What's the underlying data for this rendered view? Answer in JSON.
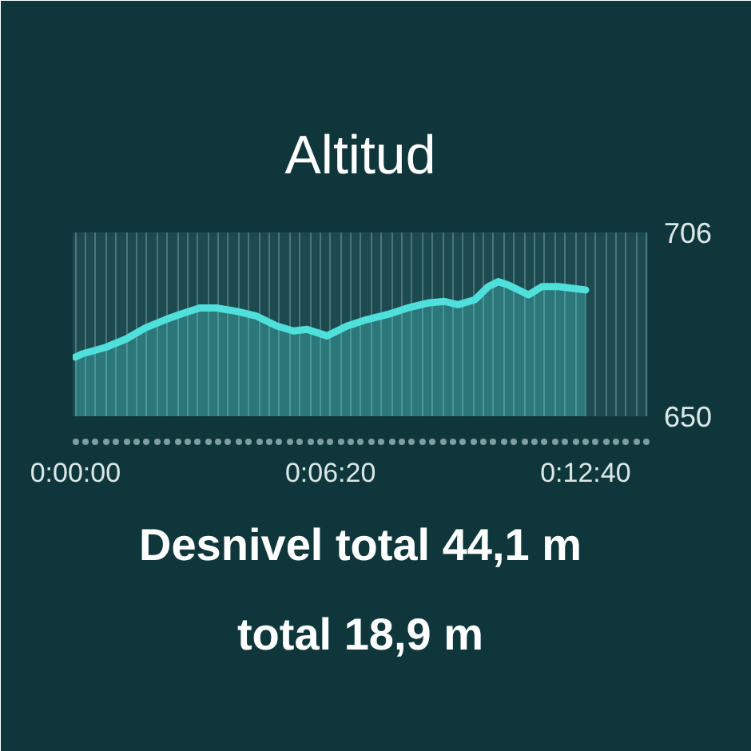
{
  "chart_data": {
    "type": "area",
    "title": "Altitud",
    "x": [
      0,
      10,
      45,
      75,
      105,
      135,
      155,
      185,
      210,
      240,
      270,
      300,
      325,
      345,
      375,
      405,
      435,
      465,
      495,
      525,
      550,
      570,
      595,
      615,
      630,
      645,
      675,
      695,
      720,
      760
    ],
    "series": [
      {
        "color": "#4fe0dc",
        "values": [
          668,
          669,
          671,
          673.5,
          677,
          679.5,
          681,
          683,
          683,
          682,
          680.5,
          677.5,
          676,
          676.5,
          674.5,
          677.5,
          679.5,
          681,
          683,
          684.5,
          685,
          684,
          685.5,
          689.5,
          691,
          690,
          687,
          689.5,
          689.5,
          688.5
        ]
      }
    ],
    "xlim": [
      -4,
      853
    ],
    "ylim": [
      650,
      706
    ],
    "yticks": [
      650,
      706
    ],
    "xticks": [
      {
        "value": 0,
        "label": "0:00:00"
      },
      {
        "value": 15.2,
        "label": null
      },
      {
        "value": 30.4,
        "label": null
      },
      {
        "value": 45.6,
        "label": null
      },
      {
        "value": 60.8,
        "label": null
      },
      {
        "value": 76,
        "label": null
      },
      {
        "value": 91.2,
        "label": null
      },
      {
        "value": 106.4,
        "label": null
      },
      {
        "value": 121.6,
        "label": null
      },
      {
        "value": 136.8,
        "label": null
      },
      {
        "value": 152,
        "label": null
      },
      {
        "value": 167.2,
        "label": null
      },
      {
        "value": 182.4,
        "label": null
      },
      {
        "value": 197.6,
        "label": null
      },
      {
        "value": 212.8,
        "label": null
      },
      {
        "value": 228,
        "label": null
      },
      {
        "value": 243.2,
        "label": null
      },
      {
        "value": 258.4,
        "label": null
      },
      {
        "value": 273.6,
        "label": null
      },
      {
        "value": 288.8,
        "label": null
      },
      {
        "value": 304,
        "label": null
      },
      {
        "value": 319.2,
        "label": null
      },
      {
        "value": 334.4,
        "label": null
      },
      {
        "value": 349.6,
        "label": null
      },
      {
        "value": 364.8,
        "label": null
      },
      {
        "value": 380,
        "label": "0:06:20"
      },
      {
        "value": 395.2,
        "label": null
      },
      {
        "value": 410.4,
        "label": null
      },
      {
        "value": 425.6,
        "label": null
      },
      {
        "value": 440.8,
        "label": null
      },
      {
        "value": 456,
        "label": null
      },
      {
        "value": 471.2,
        "label": null
      },
      {
        "value": 486.4,
        "label": null
      },
      {
        "value": 501.6,
        "label": null
      },
      {
        "value": 516.8,
        "label": null
      },
      {
        "value": 532,
        "label": null
      },
      {
        "value": 547.2,
        "label": null
      },
      {
        "value": 562.4,
        "label": null
      },
      {
        "value": 577.6,
        "label": null
      },
      {
        "value": 592.8,
        "label": null
      },
      {
        "value": 608,
        "label": null
      },
      {
        "value": 623.2,
        "label": null
      },
      {
        "value": 638.4,
        "label": null
      },
      {
        "value": 653.6,
        "label": null
      },
      {
        "value": 668.8,
        "label": null
      },
      {
        "value": 684,
        "label": null
      },
      {
        "value": 699.2,
        "label": null
      },
      {
        "value": 714.4,
        "label": null
      },
      {
        "value": 729.6,
        "label": null
      },
      {
        "value": 744.8,
        "label": null
      },
      {
        "value": 760,
        "label": "0:12:40"
      },
      {
        "value": 775.2,
        "label": null
      },
      {
        "value": 790.4,
        "label": null
      },
      {
        "value": 805.6,
        "label": null
      },
      {
        "value": 820.8,
        "label": null
      },
      {
        "value": 836,
        "label": null
      },
      {
        "value": 851.2,
        "label": null
      }
    ],
    "grid": true,
    "annotations": [
      "Desnivel total 44,1 m",
      "total 18,9 m"
    ]
  }
}
